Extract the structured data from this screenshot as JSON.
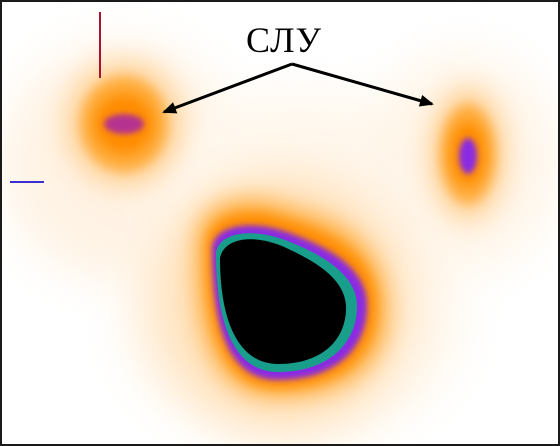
{
  "annotation": {
    "label": "СЛУ"
  },
  "colors": {
    "background": "#ffffff",
    "glow_outer": "#ffe7c2",
    "glow_mid": "#ffb347",
    "glow_inner": "#ff8c00",
    "core_purple": "#8a2be2",
    "core_teal": "#1a9e8c",
    "core_black": "#000000",
    "marker_red": "#b01030",
    "marker_blue": "#3a2fd0",
    "arrow": "#000000"
  },
  "icons": {
    "left_arrow": "arrow-left-icon",
    "right_arrow": "arrow-right-icon"
  }
}
